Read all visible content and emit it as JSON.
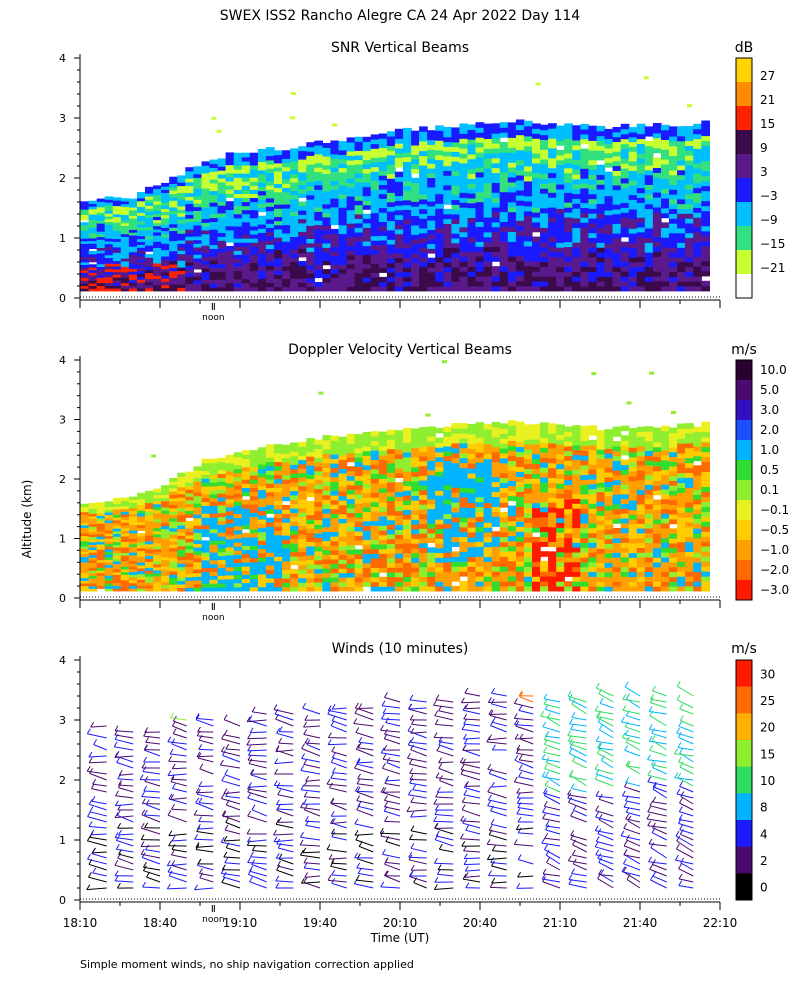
{
  "figure_title": "SWEX ISS2 Rancho Alegre CA  24 Apr 2022 Day 114",
  "y_axis_label": "Altitude (km)",
  "x_axis_label": "Time (UT)",
  "footnote": "Simple moment winds, no ship navigation correction applied",
  "noon_label": "noon",
  "chart_data": [
    {
      "type": "heatmap",
      "title": "SNR Vertical Beams",
      "units": "dB",
      "ylim": [
        0,
        4
      ],
      "yticks": [
        0,
        1,
        2,
        3,
        4
      ],
      "colorbar_ticks": [
        "27",
        "21",
        "15",
        "9",
        "3",
        "−3",
        "−9",
        "−15",
        "−21"
      ],
      "colorbar_colors": [
        "#ffd400",
        "#ff8c00",
        "#ff2200",
        "#3a0a4a",
        "#5a1a8c",
        "#1a1aff",
        "#00bfff",
        "#33e080",
        "#c8ff30",
        "#ffffff"
      ],
      "echo_top_km": [
        1.6,
        1.7,
        1.9,
        2.3,
        2.45,
        2.5,
        2.6,
        2.7,
        2.8,
        2.85,
        2.9,
        2.95,
        2.9,
        2.85,
        2.9,
        2.9,
        2.95
      ],
      "x_hours": [
        18.17,
        18.42,
        18.67,
        18.92,
        19.17,
        19.42,
        19.67,
        19.92,
        20.17,
        20.42,
        20.67,
        20.92,
        21.17,
        21.42,
        21.67,
        21.92,
        22.17
      ]
    },
    {
      "type": "heatmap",
      "title": "Doppler Velocity Vertical Beams",
      "units": "m/s",
      "ylim": [
        0,
        4
      ],
      "yticks": [
        0,
        1,
        2,
        3,
        4
      ],
      "colorbar_ticks": [
        "10.0",
        "5.0",
        "3.0",
        "2.0",
        "1.0",
        "0.5",
        "0.1",
        "−0.1",
        "−0.5",
        "−1.0",
        "−2.0",
        "−3.0"
      ],
      "colorbar_colors": [
        "#2a0030",
        "#4a0a70",
        "#3010c0",
        "#1a50ff",
        "#00b4ff",
        "#30dd30",
        "#90ee30",
        "#e8f020",
        "#ffcc00",
        "#ffa000",
        "#ff6a00",
        "#ff1a00"
      ],
      "echo_top_km": [
        1.6,
        1.7,
        1.9,
        2.3,
        2.5,
        2.6,
        2.7,
        2.8,
        2.85,
        2.9,
        2.95,
        2.95,
        2.9,
        2.85,
        2.9,
        2.9,
        2.95
      ],
      "x_hours": [
        18.17,
        18.42,
        18.67,
        18.92,
        19.17,
        19.42,
        19.67,
        19.92,
        20.17,
        20.42,
        20.67,
        20.92,
        21.17,
        21.42,
        21.67,
        21.92,
        22.17
      ]
    },
    {
      "type": "scatter",
      "title": "Winds (10 minutes)",
      "units": "m/s",
      "ylim": [
        0,
        4
      ],
      "yticks": [
        0,
        1,
        2,
        3,
        4
      ],
      "xlim": [
        18.1667,
        22.1667
      ],
      "xticks": [
        "18:10",
        "18:40",
        "19:10",
        "19:40",
        "20:10",
        "20:40",
        "21:10",
        "21:40",
        "22:10"
      ],
      "colorbar_ticks": [
        "30",
        "25",
        "20",
        "15",
        "10",
        "8",
        "4",
        "2",
        "0"
      ],
      "colorbar_colors": [
        "#ff1a00",
        "#ff6a00",
        "#ffb000",
        "#90ee30",
        "#30dd60",
        "#00b4ff",
        "#1a1aff",
        "#4a0a70",
        "#000000"
      ],
      "profile_times": [
        "18:20",
        "18:30",
        "18:40",
        "18:50",
        "19:00",
        "19:10",
        "19:20",
        "19:30",
        "19:40",
        "19:50",
        "20:00",
        "20:10",
        "20:20",
        "20:30",
        "20:40",
        "20:50",
        "21:00",
        "21:10",
        "21:20",
        "21:30",
        "21:40",
        "21:50",
        "22:00"
      ],
      "profile_top_km": [
        2.95,
        2.9,
        2.85,
        3.05,
        3.05,
        3.05,
        3.15,
        3.2,
        3.2,
        3.3,
        3.3,
        3.35,
        3.35,
        3.4,
        3.45,
        3.5,
        3.6,
        3.4,
        3.35,
        3.45,
        3.45,
        3.55,
        3.5
      ]
    }
  ]
}
